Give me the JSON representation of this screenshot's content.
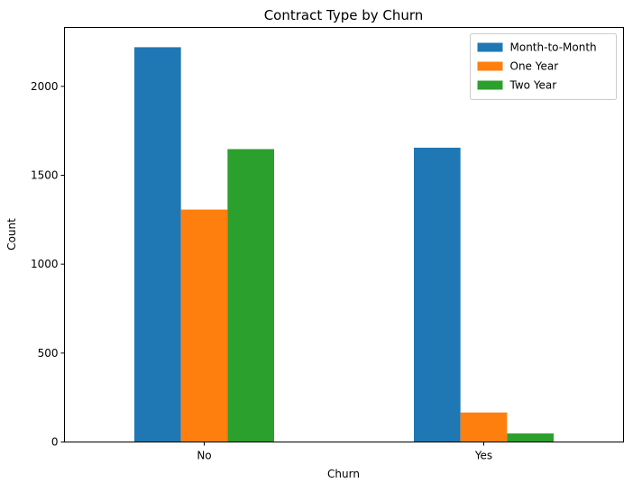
{
  "chart_data": {
    "type": "bar",
    "title": "Contract Type by Churn",
    "xlabel": "Churn",
    "ylabel": "Count",
    "categories": [
      "No",
      "Yes"
    ],
    "series": [
      {
        "name": "Month-to-Month",
        "color": "#1f77b4",
        "values": [
          2220,
          1655
        ]
      },
      {
        "name": "One Year",
        "color": "#ff7f0e",
        "values": [
          1307,
          166
        ]
      },
      {
        "name": "Two Year",
        "color": "#2ca02c",
        "values": [
          1647,
          48
        ]
      }
    ],
    "ylim": [
      0,
      2331
    ],
    "yticks": [
      0,
      500,
      1000,
      1500,
      2000
    ],
    "legend_position": "top-right",
    "grid": false
  }
}
